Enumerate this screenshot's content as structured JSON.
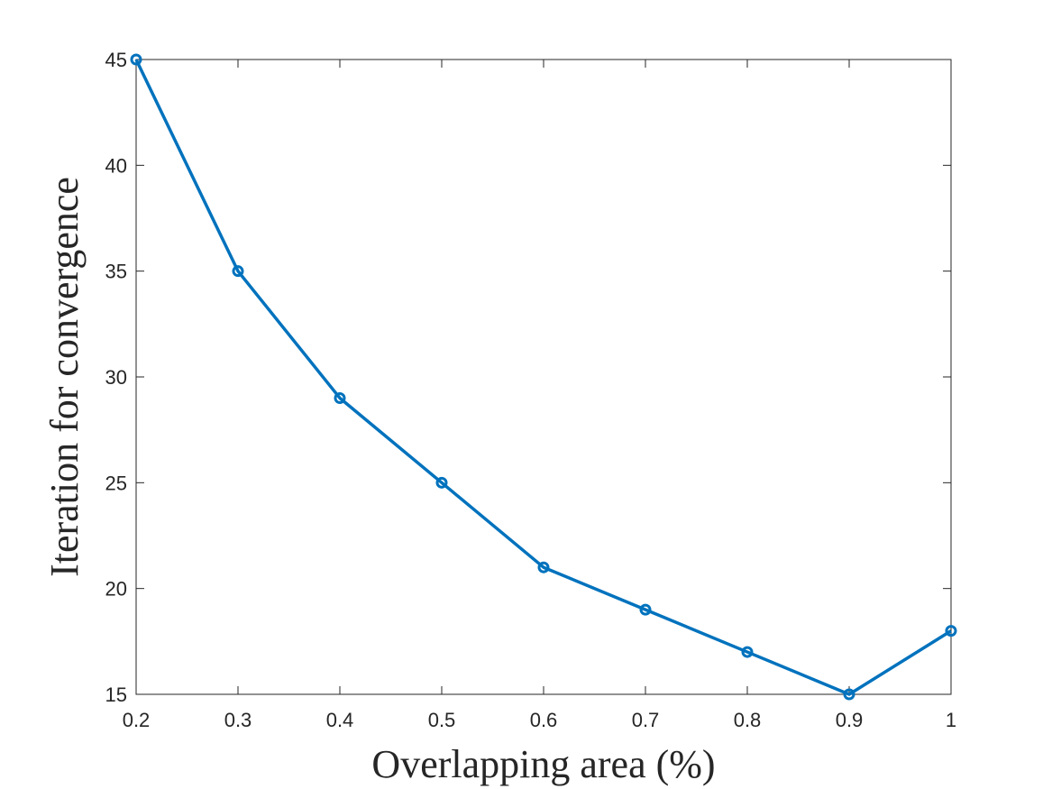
{
  "chart_data": {
    "type": "line",
    "title": "",
    "xlabel": "Overlapping area (%)",
    "ylabel": "Iteration for convergence",
    "x": [
      0.2,
      0.3,
      0.4,
      0.5,
      0.6,
      0.7,
      0.8,
      0.9,
      1.0
    ],
    "series": [
      {
        "values": [
          45,
          35,
          29,
          25,
          21,
          19,
          17,
          15,
          18
        ],
        "color": "#0072BD",
        "marker": "circle"
      }
    ],
    "xlim": [
      0.2,
      1.0
    ],
    "ylim": [
      15,
      45
    ],
    "xticks": [
      0.2,
      0.3,
      0.4,
      0.5,
      0.6,
      0.7,
      0.8,
      0.9,
      1.0
    ],
    "xtick_labels": [
      "0.2",
      "0.3",
      "0.4",
      "0.5",
      "0.6",
      "0.7",
      "0.8",
      "0.9",
      "1"
    ],
    "yticks": [
      15,
      20,
      25,
      30,
      35,
      40,
      45
    ],
    "ytick_labels": [
      "15",
      "20",
      "25",
      "30",
      "35",
      "40",
      "45"
    ],
    "grid": false,
    "box": true
  }
}
